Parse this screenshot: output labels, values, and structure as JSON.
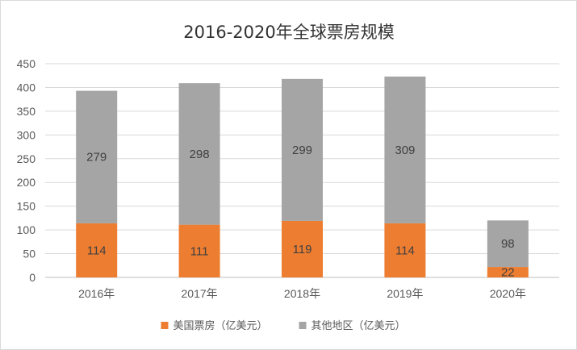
{
  "chart_data": {
    "type": "bar",
    "stacked": true,
    "title": "2016-2020年全球票房规模",
    "categories": [
      "2016年",
      "2017年",
      "2018年",
      "2019年",
      "2020年"
    ],
    "series": [
      {
        "name": "美国票房（亿美元）",
        "values": [
          114,
          111,
          119,
          114,
          22
        ],
        "color": "#ED7D31"
      },
      {
        "name": "其他地区（亿美元）",
        "values": [
          279,
          298,
          299,
          309,
          98
        ],
        "color": "#A5A5A5"
      }
    ],
    "ylim": [
      0,
      450
    ],
    "yticks": [
      "0",
      "50",
      "100",
      "150",
      "200",
      "250",
      "300",
      "350",
      "400",
      "450"
    ],
    "grid": true,
    "data_labels": true,
    "legend_position": "bottom"
  }
}
